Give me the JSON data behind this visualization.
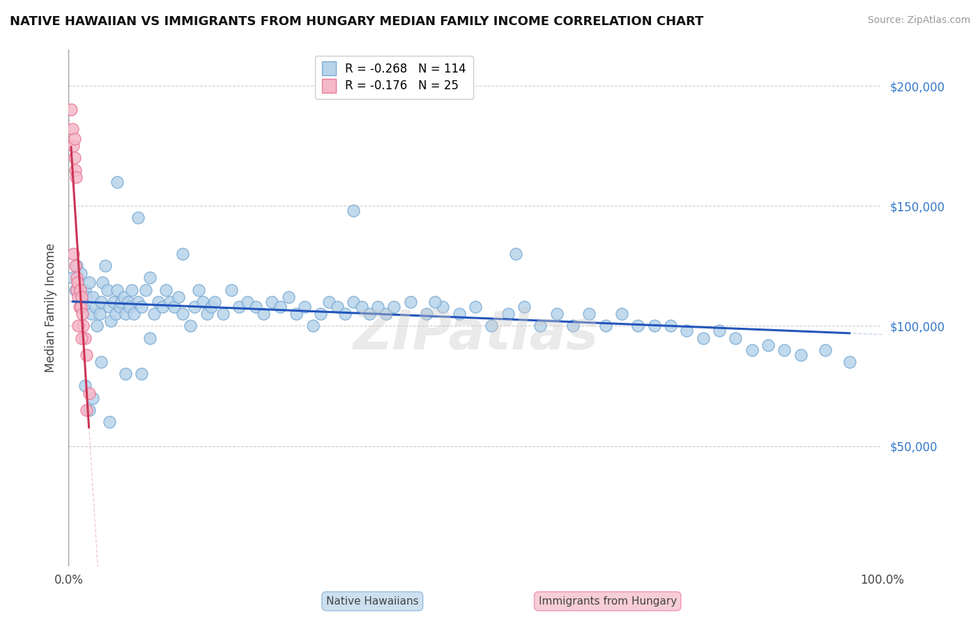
{
  "title": "NATIVE HAWAIIAN VS IMMIGRANTS FROM HUNGARY MEDIAN FAMILY INCOME CORRELATION CHART",
  "source": "Source: ZipAtlas.com",
  "ylabel": "Median Family Income",
  "xlim": [
    0,
    1.0
  ],
  "ylim": [
    0,
    215000
  ],
  "ytick_values": [
    50000,
    100000,
    150000,
    200000
  ],
  "ytick_labels": [
    "$50,000",
    "$100,000",
    "$150,000",
    "$200,000"
  ],
  "blue_R": -0.268,
  "blue_N": 114,
  "pink_R": -0.176,
  "pink_N": 25,
  "blue_color": "#b8d4ea",
  "blue_edge": "#7aaad4",
  "pink_color": "#f5b8c8",
  "pink_edge": "#e87898",
  "blue_line_color": "#2255bb",
  "pink_line_color": "#cc3355",
  "legend_label_blue": "Native Hawaiians",
  "legend_label_pink": "Immigrants from Hungary",
  "watermark": "ZIPatlas",
  "blue_scatter_x": [
    0.005,
    0.008,
    0.01,
    0.012,
    0.015,
    0.015,
    0.018,
    0.02,
    0.022,
    0.025,
    0.028,
    0.03,
    0.033,
    0.035,
    0.038,
    0.04,
    0.042,
    0.045,
    0.048,
    0.05,
    0.052,
    0.055,
    0.058,
    0.06,
    0.063,
    0.065,
    0.068,
    0.07,
    0.073,
    0.075,
    0.078,
    0.08,
    0.085,
    0.09,
    0.095,
    0.1,
    0.105,
    0.11,
    0.115,
    0.12,
    0.125,
    0.13,
    0.135,
    0.14,
    0.15,
    0.155,
    0.16,
    0.165,
    0.17,
    0.175,
    0.18,
    0.19,
    0.2,
    0.21,
    0.22,
    0.23,
    0.24,
    0.25,
    0.26,
    0.27,
    0.28,
    0.29,
    0.3,
    0.31,
    0.32,
    0.33,
    0.34,
    0.35,
    0.36,
    0.37,
    0.38,
    0.39,
    0.4,
    0.42,
    0.44,
    0.46,
    0.48,
    0.5,
    0.52,
    0.54,
    0.56,
    0.58,
    0.6,
    0.62,
    0.64,
    0.66,
    0.68,
    0.7,
    0.72,
    0.74,
    0.76,
    0.78,
    0.8,
    0.82,
    0.84,
    0.86,
    0.88,
    0.9,
    0.93,
    0.96,
    0.55,
    0.45,
    0.35,
    0.14,
    0.05,
    0.07,
    0.09,
    0.1,
    0.085,
    0.06,
    0.04,
    0.03,
    0.025,
    0.02
  ],
  "blue_scatter_y": [
    120000,
    115000,
    125000,
    118000,
    110000,
    122000,
    108000,
    115000,
    112000,
    118000,
    105000,
    112000,
    108000,
    100000,
    105000,
    110000,
    118000,
    125000,
    115000,
    108000,
    102000,
    110000,
    105000,
    115000,
    108000,
    110000,
    112000,
    105000,
    110000,
    108000,
    115000,
    105000,
    110000,
    108000,
    115000,
    120000,
    105000,
    110000,
    108000,
    115000,
    110000,
    108000,
    112000,
    105000,
    100000,
    108000,
    115000,
    110000,
    105000,
    108000,
    110000,
    105000,
    115000,
    108000,
    110000,
    108000,
    105000,
    110000,
    108000,
    112000,
    105000,
    108000,
    100000,
    105000,
    110000,
    108000,
    105000,
    110000,
    108000,
    105000,
    108000,
    105000,
    108000,
    110000,
    105000,
    108000,
    105000,
    108000,
    100000,
    105000,
    108000,
    100000,
    105000,
    100000,
    105000,
    100000,
    105000,
    100000,
    100000,
    100000,
    98000,
    95000,
    98000,
    95000,
    90000,
    92000,
    90000,
    88000,
    90000,
    85000,
    130000,
    110000,
    148000,
    130000,
    60000,
    80000,
    80000,
    95000,
    145000,
    160000,
    85000,
    70000,
    65000,
    75000
  ],
  "pink_scatter_x": [
    0.003,
    0.005,
    0.006,
    0.007,
    0.007,
    0.008,
    0.009,
    0.01,
    0.01,
    0.011,
    0.012,
    0.013,
    0.014,
    0.015,
    0.016,
    0.017,
    0.018,
    0.02,
    0.022,
    0.025,
    0.006,
    0.008,
    0.012,
    0.016,
    0.022
  ],
  "pink_scatter_y": [
    190000,
    182000,
    175000,
    170000,
    178000,
    165000,
    162000,
    120000,
    115000,
    118000,
    112000,
    108000,
    115000,
    108000,
    112000,
    105000,
    100000,
    95000,
    88000,
    72000,
    130000,
    125000,
    100000,
    95000,
    65000
  ]
}
